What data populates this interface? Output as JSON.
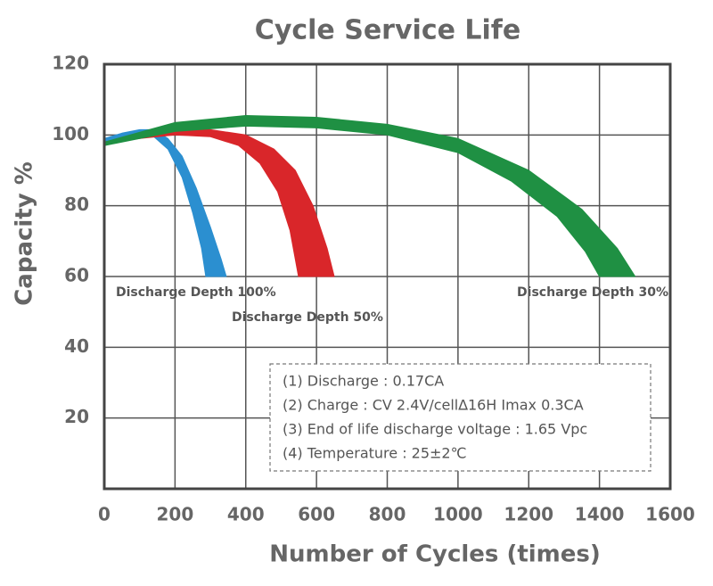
{
  "chart_data": {
    "type": "band",
    "title": "Cycle Service Life",
    "x_label": "Number of Cycles (times)",
    "y_label": "Capacity %",
    "xlim": [
      0,
      1600
    ],
    "xticks": [
      0,
      200,
      400,
      600,
      800,
      1000,
      1200,
      1400,
      1600
    ],
    "ylim": [
      0,
      120
    ],
    "yticks": [
      20,
      40,
      60,
      80,
      100,
      120
    ],
    "grid": true,
    "series": [
      {
        "name": "Discharge Depth 100%",
        "color": "#2b8fd0",
        "outer": {
          "x": [
            0,
            50,
            100,
            140,
            180,
            220,
            260,
            300,
            330,
            345
          ],
          "y": [
            99,
            100.5,
            101.5,
            101.5,
            99,
            94,
            85,
            74,
            65,
            60
          ]
        },
        "inner": {
          "x": [
            0,
            50,
            100,
            140,
            180,
            220,
            250,
            275,
            287
          ],
          "y": [
            97.5,
            99,
            100,
            99.5,
            96,
            88,
            78,
            68,
            60
          ]
        }
      },
      {
        "name": "Discharge Depth 50%",
        "color": "#d9262a",
        "outer": {
          "x": [
            0,
            100,
            200,
            300,
            400,
            480,
            540,
            590,
            630,
            650
          ],
          "y": [
            98,
            100,
            101.5,
            101.5,
            100,
            96,
            90,
            80,
            68,
            60
          ]
        },
        "inner": {
          "x": [
            0,
            100,
            200,
            300,
            380,
            440,
            490,
            525,
            549
          ],
          "y": [
            97.5,
            99,
            100,
            99.5,
            97,
            92,
            84,
            73,
            60
          ]
        }
      },
      {
        "name": "Discharge Depth 30%",
        "color": "#1f9043",
        "outer": {
          "x": [
            0,
            200,
            400,
            600,
            800,
            1000,
            1200,
            1350,
            1450,
            1501
          ],
          "y": [
            98,
            103.5,
            105.5,
            105,
            103,
            99,
            90,
            79,
            68,
            60
          ]
        },
        "inner": {
          "x": [
            0,
            200,
            400,
            600,
            800,
            1000,
            1150,
            1280,
            1360,
            1400
          ],
          "y": [
            97,
            101,
            102.5,
            102,
            100,
            95,
            87,
            77,
            67,
            60
          ]
        }
      }
    ],
    "notes": [
      "(1) Discharge : 0.17CA",
      "(2) Charge : CV 2.4V/cell∆16H Imax 0.3CA",
      "(3) End of life discharge voltage : 1.65 Vpc",
      "(4) Temperature : 25±2℃"
    ]
  }
}
